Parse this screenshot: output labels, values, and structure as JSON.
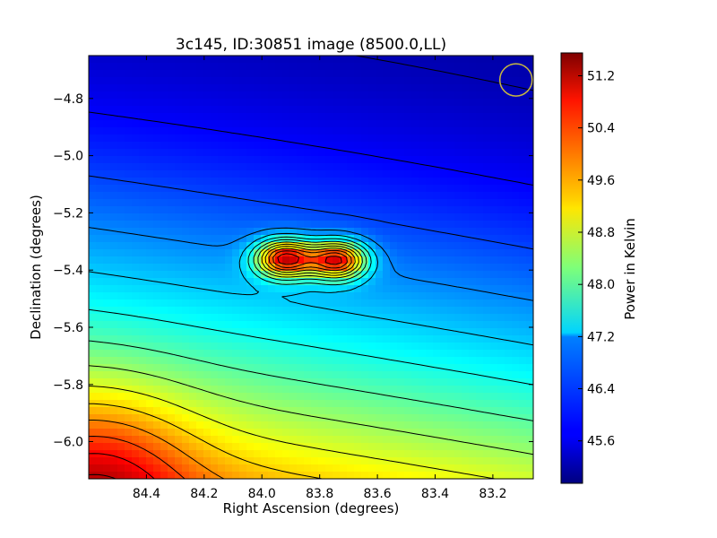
{
  "chart_data": {
    "type": "heatmap",
    "title": "3c145, ID:30851 image (8500.0,LL)",
    "xlabel": "Right Ascension (degrees)",
    "ylabel": "Declination (degrees)",
    "colorbar_label": "Power in Kelvin",
    "xlim": [
      84.6,
      83.06
    ],
    "ylim": [
      -6.13,
      -4.65
    ],
    "x_ticks": [
      84.4,
      84.2,
      84.0,
      83.8,
      83.6,
      83.4,
      83.2
    ],
    "x_tick_labels": [
      "84.4",
      "84.2",
      "84.0",
      "83.8",
      "83.6",
      "83.4",
      "83.2"
    ],
    "y_ticks": [
      -4.8,
      -5.0,
      -5.2,
      -5.4,
      -5.6,
      -5.8,
      -6.0
    ],
    "y_tick_labels": [
      "−4.8",
      "−5.0",
      "−5.2",
      "−5.4",
      "−5.6",
      "−5.8",
      "−6.0"
    ],
    "colorbar_range": [
      44.95,
      51.55
    ],
    "colorbar_ticks": [
      45.6,
      46.4,
      47.2,
      48.0,
      48.8,
      49.6,
      50.4,
      51.2
    ],
    "colorbar_tick_labels": [
      "45.6",
      "46.4",
      "47.2",
      "48.0",
      "48.8",
      "49.6",
      "50.4",
      "51.2"
    ],
    "colormap": "jet",
    "sources": [
      {
        "ra": 83.92,
        "dec": -5.36,
        "peak_k": 51.3
      },
      {
        "ra": 83.74,
        "dec": -5.365,
        "peak_k": 51.2
      }
    ],
    "beam_marker": {
      "ra": 83.12,
      "dec": -4.735,
      "color": "#c8b840"
    },
    "contour_color": "#000000",
    "grid": false,
    "legend": "none"
  }
}
